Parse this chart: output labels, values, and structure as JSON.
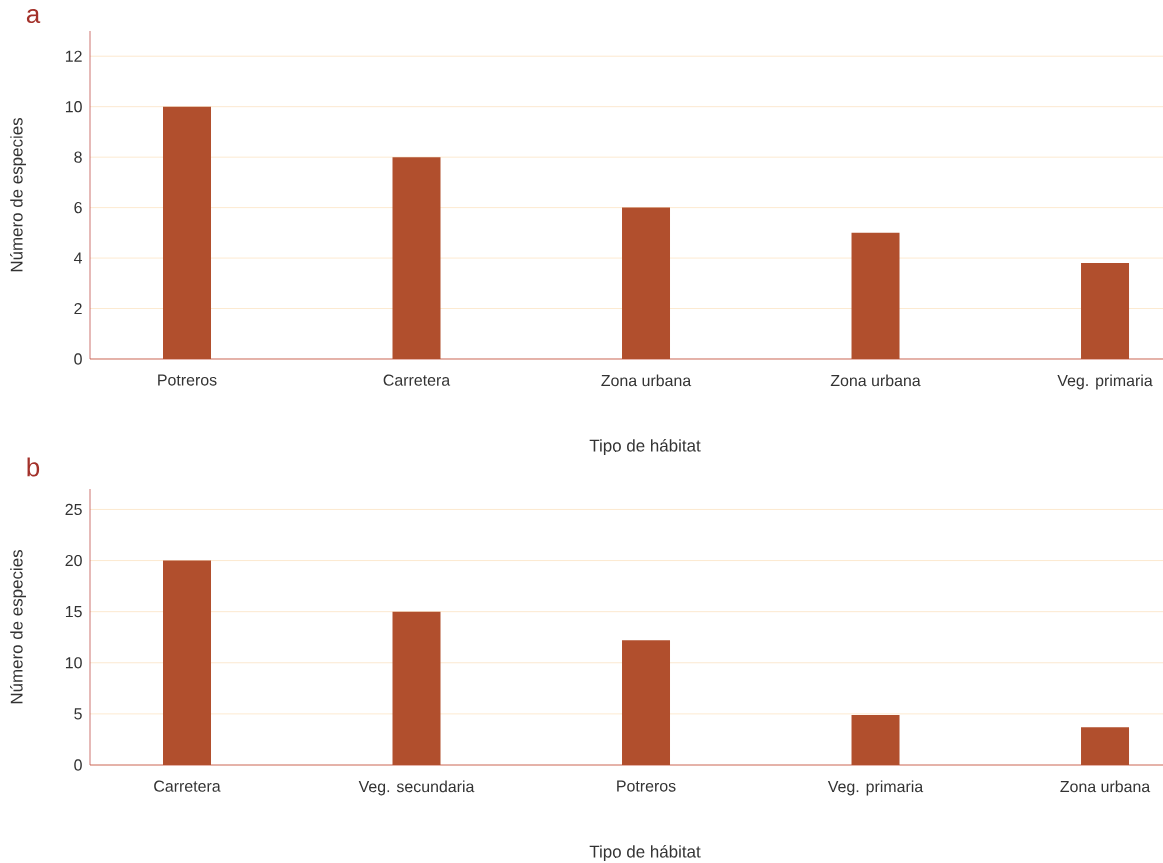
{
  "chart_data": [
    {
      "type": "bar",
      "title": "a",
      "xlabel": "Tipo de hábitat",
      "ylabel": "Número de especies",
      "categories": [
        "Potreros",
        "Carretera",
        "Zona urbana",
        "Zona urbana",
        "Veg. primaria"
      ],
      "values": [
        10,
        8,
        6,
        5,
        3.8
      ],
      "color": "#b14f2d",
      "ylim": [
        0,
        13
      ],
      "yticks": [
        0,
        2,
        4,
        6,
        8,
        10,
        12
      ],
      "grid": "y"
    },
    {
      "type": "bar",
      "title": "b",
      "xlabel": "Tipo de hábitat",
      "ylabel": "Número de especies",
      "categories": [
        "Carretera",
        "Veg. secundaria",
        "Potreros",
        "Veg. primaria",
        "Zona urbana"
      ],
      "values": [
        20,
        15,
        12.2,
        4.9,
        3.7
      ],
      "color": "#b14f2d",
      "ylim": [
        0,
        27
      ],
      "yticks": [
        0,
        5,
        10,
        15,
        20,
        25
      ],
      "grid": "y"
    }
  ]
}
